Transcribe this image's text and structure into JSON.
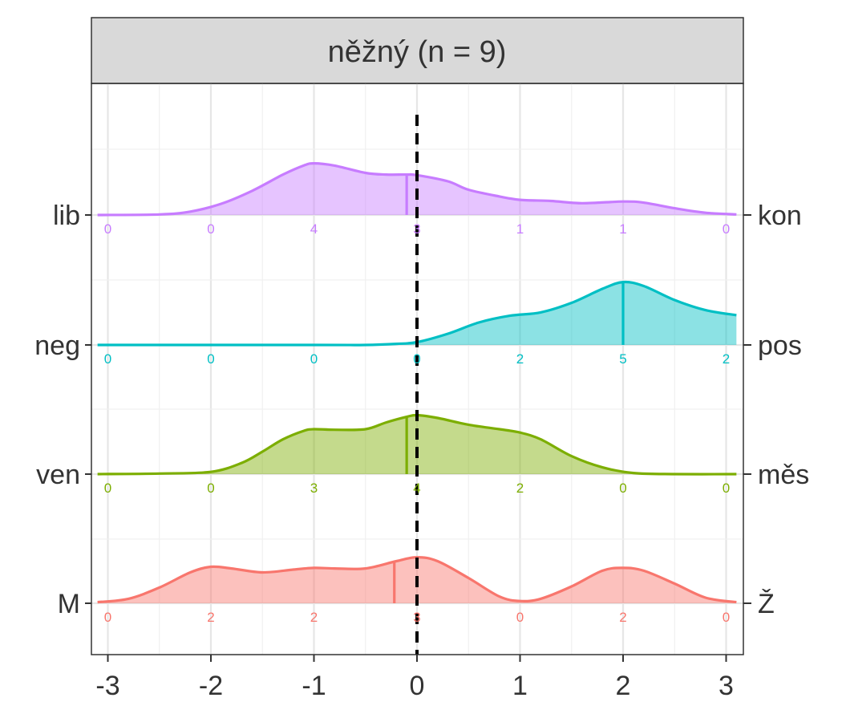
{
  "chart_data": {
    "type": "ridgeline",
    "panel_title": "něžný (n = 9)",
    "xlim": [
      -3.1,
      3.1
    ],
    "x_ticks": [
      -3,
      -2,
      -1,
      0,
      1,
      2,
      3
    ],
    "x_tick_labels": [
      "-3",
      "-2",
      "-1",
      "0",
      "1",
      "2",
      "3"
    ],
    "reference_line_x": 0,
    "grid": true,
    "series": [
      {
        "left_label": "M",
        "right_label": "Ž",
        "color": "#F8766D",
        "counts": [
          0,
          2,
          2,
          3,
          0,
          2,
          0
        ],
        "mean": -0.22,
        "density": [
          [
            -3.1,
            0.02
          ],
          [
            -2.8,
            0.08
          ],
          [
            -2.5,
            0.28
          ],
          [
            -2.2,
            0.55
          ],
          [
            -2.0,
            0.65
          ],
          [
            -1.8,
            0.62
          ],
          [
            -1.5,
            0.55
          ],
          [
            -1.2,
            0.6
          ],
          [
            -1.0,
            0.63
          ],
          [
            -0.8,
            0.62
          ],
          [
            -0.5,
            0.62
          ],
          [
            -0.2,
            0.75
          ],
          [
            0.0,
            0.82
          ],
          [
            0.2,
            0.75
          ],
          [
            0.5,
            0.45
          ],
          [
            0.8,
            0.12
          ],
          [
            1.0,
            0.04
          ],
          [
            1.2,
            0.08
          ],
          [
            1.5,
            0.3
          ],
          [
            1.8,
            0.58
          ],
          [
            2.0,
            0.63
          ],
          [
            2.2,
            0.58
          ],
          [
            2.5,
            0.35
          ],
          [
            2.8,
            0.1
          ],
          [
            3.1,
            0.02
          ]
        ]
      },
      {
        "left_label": "ven",
        "right_label": "měs",
        "color": "#7CAE00",
        "counts": [
          0,
          0,
          3,
          4,
          2,
          0,
          0
        ],
        "mean": -0.1,
        "density": [
          [
            -3.1,
            0.0
          ],
          [
            -2.5,
            0.01
          ],
          [
            -2.0,
            0.04
          ],
          [
            -1.7,
            0.2
          ],
          [
            -1.5,
            0.4
          ],
          [
            -1.3,
            0.62
          ],
          [
            -1.1,
            0.77
          ],
          [
            -1.0,
            0.8
          ],
          [
            -0.8,
            0.79
          ],
          [
            -0.5,
            0.8
          ],
          [
            -0.3,
            0.92
          ],
          [
            -0.1,
            1.02
          ],
          [
            0.0,
            1.05
          ],
          [
            0.2,
            1.0
          ],
          [
            0.5,
            0.88
          ],
          [
            0.8,
            0.8
          ],
          [
            1.0,
            0.74
          ],
          [
            1.2,
            0.62
          ],
          [
            1.5,
            0.32
          ],
          [
            1.8,
            0.12
          ],
          [
            2.1,
            0.02
          ],
          [
            2.5,
            0.0
          ],
          [
            3.1,
            0.0
          ]
        ]
      },
      {
        "left_label": "neg",
        "right_label": "pos",
        "color": "#00BFC4",
        "counts": [
          0,
          0,
          0,
          0,
          2,
          5,
          2
        ],
        "mean": 2.0,
        "density": [
          [
            -3.1,
            0.0
          ],
          [
            -1.0,
            0.0
          ],
          [
            -0.5,
            0.0
          ],
          [
            -0.2,
            0.02
          ],
          [
            0.0,
            0.05
          ],
          [
            0.3,
            0.2
          ],
          [
            0.6,
            0.4
          ],
          [
            0.9,
            0.52
          ],
          [
            1.2,
            0.58
          ],
          [
            1.5,
            0.75
          ],
          [
            1.8,
            1.0
          ],
          [
            2.0,
            1.12
          ],
          [
            2.2,
            1.05
          ],
          [
            2.5,
            0.8
          ],
          [
            2.8,
            0.62
          ],
          [
            3.1,
            0.53
          ]
        ]
      },
      {
        "left_label": "lib",
        "right_label": "kon",
        "color": "#C77CFF",
        "counts": [
          0,
          0,
          4,
          3,
          1,
          1,
          0
        ],
        "mean": -0.1,
        "density": [
          [
            -3.1,
            0.0
          ],
          [
            -2.5,
            0.01
          ],
          [
            -2.2,
            0.06
          ],
          [
            -1.9,
            0.2
          ],
          [
            -1.6,
            0.43
          ],
          [
            -1.3,
            0.72
          ],
          [
            -1.1,
            0.88
          ],
          [
            -1.0,
            0.92
          ],
          [
            -0.8,
            0.88
          ],
          [
            -0.5,
            0.75
          ],
          [
            -0.3,
            0.72
          ],
          [
            -0.1,
            0.72
          ],
          [
            0.0,
            0.71
          ],
          [
            0.3,
            0.6
          ],
          [
            0.5,
            0.45
          ],
          [
            0.8,
            0.33
          ],
          [
            1.0,
            0.27
          ],
          [
            1.3,
            0.25
          ],
          [
            1.6,
            0.21
          ],
          [
            2.0,
            0.24
          ],
          [
            2.2,
            0.22
          ],
          [
            2.5,
            0.12
          ],
          [
            2.8,
            0.04
          ],
          [
            3.1,
            0.01
          ]
        ]
      }
    ]
  }
}
